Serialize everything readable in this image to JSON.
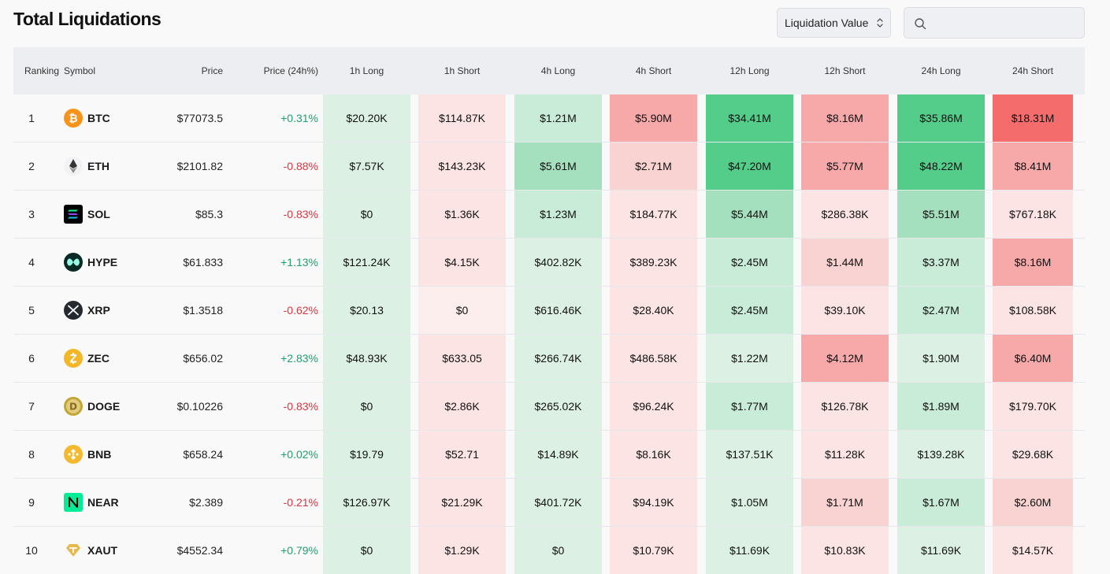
{
  "title": "Total Liquidations",
  "metric_select": {
    "value": "Liquidation Value"
  },
  "search": {
    "placeholder": "",
    "value": ""
  },
  "colors": {
    "positive_text": "#21a06b",
    "negative_text": "#e2323c",
    "green_scale": [
      "#e8f5ec",
      "#dcf1e4",
      "#c8ecd7",
      "#a5e0be",
      "#53cd89"
    ],
    "red_scale": [
      "#fdeeee",
      "#fce4e4",
      "#f9d2d2",
      "#f7a9a9",
      "#f46c6c"
    ]
  },
  "table": {
    "headers": {
      "ranking": "Ranking",
      "symbol": "Symbol",
      "price": "Price",
      "change": "Price (24h%)",
      "l1h": "1h Long",
      "s1h": "1h Short",
      "l4h": "4h Long",
      "s4h": "4h Short",
      "l12h": "12h Long",
      "s12h": "12h Short",
      "l24h": "24h Long",
      "s24h": "24h Short"
    },
    "rows": [
      {
        "rank": "1",
        "symbol": "BTC",
        "icon": "bitcoin-icon",
        "price": "$77073.5",
        "change": "+0.31%",
        "dir": "pos",
        "values": [
          "$20.20K",
          "$114.87K",
          "$1.21M",
          "$5.90M",
          "$34.41M",
          "$8.16M",
          "$35.86M",
          "$18.31M"
        ],
        "shades": [
          1,
          1,
          2,
          3,
          4,
          3,
          4,
          4
        ]
      },
      {
        "rank": "2",
        "symbol": "ETH",
        "icon": "ethereum-icon",
        "price": "$2101.82",
        "change": "-0.88%",
        "dir": "neg",
        "values": [
          "$7.57K",
          "$143.23K",
          "$5.61M",
          "$2.71M",
          "$47.20M",
          "$5.77M",
          "$48.22M",
          "$8.41M"
        ],
        "shades": [
          1,
          1,
          3,
          2,
          4,
          3,
          4,
          3
        ]
      },
      {
        "rank": "3",
        "symbol": "SOL",
        "icon": "solana-icon",
        "price": "$85.3",
        "change": "-0.83%",
        "dir": "neg",
        "values": [
          "$0",
          "$1.36K",
          "$1.23M",
          "$184.77K",
          "$5.44M",
          "$286.38K",
          "$5.51M",
          "$767.18K"
        ],
        "shades": [
          1,
          1,
          2,
          1,
          3,
          1,
          3,
          1
        ]
      },
      {
        "rank": "4",
        "symbol": "HYPE",
        "icon": "hyperliquid-icon",
        "price": "$61.833",
        "change": "+1.13%",
        "dir": "pos",
        "values": [
          "$121.24K",
          "$4.15K",
          "$402.82K",
          "$389.23K",
          "$2.45M",
          "$1.44M",
          "$3.37M",
          "$8.16M"
        ],
        "shades": [
          1,
          1,
          1,
          1,
          2,
          2,
          2,
          3
        ]
      },
      {
        "rank": "5",
        "symbol": "XRP",
        "icon": "xrp-icon",
        "price": "$1.3518",
        "change": "-0.62%",
        "dir": "neg",
        "values": [
          "$20.13",
          "$0",
          "$616.46K",
          "$28.40K",
          "$2.45M",
          "$39.10K",
          "$2.47M",
          "$108.58K"
        ],
        "shades": [
          1,
          0,
          1,
          1,
          2,
          1,
          2,
          1
        ]
      },
      {
        "rank": "6",
        "symbol": "ZEC",
        "icon": "zcash-icon",
        "price": "$656.02",
        "change": "+2.83%",
        "dir": "pos",
        "values": [
          "$48.93K",
          "$633.05",
          "$266.74K",
          "$486.58K",
          "$1.22M",
          "$4.12M",
          "$1.90M",
          "$6.40M"
        ],
        "shades": [
          1,
          1,
          1,
          1,
          1,
          3,
          1,
          3
        ]
      },
      {
        "rank": "7",
        "symbol": "DOGE",
        "icon": "dogecoin-icon",
        "price": "$0.10226",
        "change": "-0.83%",
        "dir": "neg",
        "values": [
          "$0",
          "$2.86K",
          "$265.02K",
          "$96.24K",
          "$1.77M",
          "$126.78K",
          "$1.89M",
          "$179.70K"
        ],
        "shades": [
          1,
          1,
          1,
          1,
          2,
          1,
          2,
          1
        ]
      },
      {
        "rank": "8",
        "symbol": "BNB",
        "icon": "bnb-icon",
        "price": "$658.24",
        "change": "+0.02%",
        "dir": "pos",
        "values": [
          "$19.79",
          "$52.71",
          "$14.89K",
          "$8.16K",
          "$137.51K",
          "$11.28K",
          "$139.28K",
          "$29.68K"
        ],
        "shades": [
          1,
          1,
          1,
          1,
          1,
          1,
          1,
          1
        ]
      },
      {
        "rank": "9",
        "symbol": "NEAR",
        "icon": "near-icon",
        "price": "$2.389",
        "change": "-0.21%",
        "dir": "neg",
        "values": [
          "$126.97K",
          "$21.29K",
          "$401.72K",
          "$94.19K",
          "$1.05M",
          "$1.71M",
          "$1.67M",
          "$2.60M"
        ],
        "shades": [
          1,
          1,
          1,
          1,
          1,
          2,
          2,
          2
        ]
      },
      {
        "rank": "10",
        "symbol": "XAUT",
        "icon": "tether-gold-icon",
        "price": "$4552.34",
        "change": "+0.79%",
        "dir": "pos",
        "values": [
          "$0",
          "$1.29K",
          "$0",
          "$10.79K",
          "$11.69K",
          "$10.83K",
          "$11.69K",
          "$14.57K"
        ],
        "shades": [
          1,
          1,
          1,
          1,
          1,
          1,
          1,
          1
        ]
      }
    ]
  }
}
